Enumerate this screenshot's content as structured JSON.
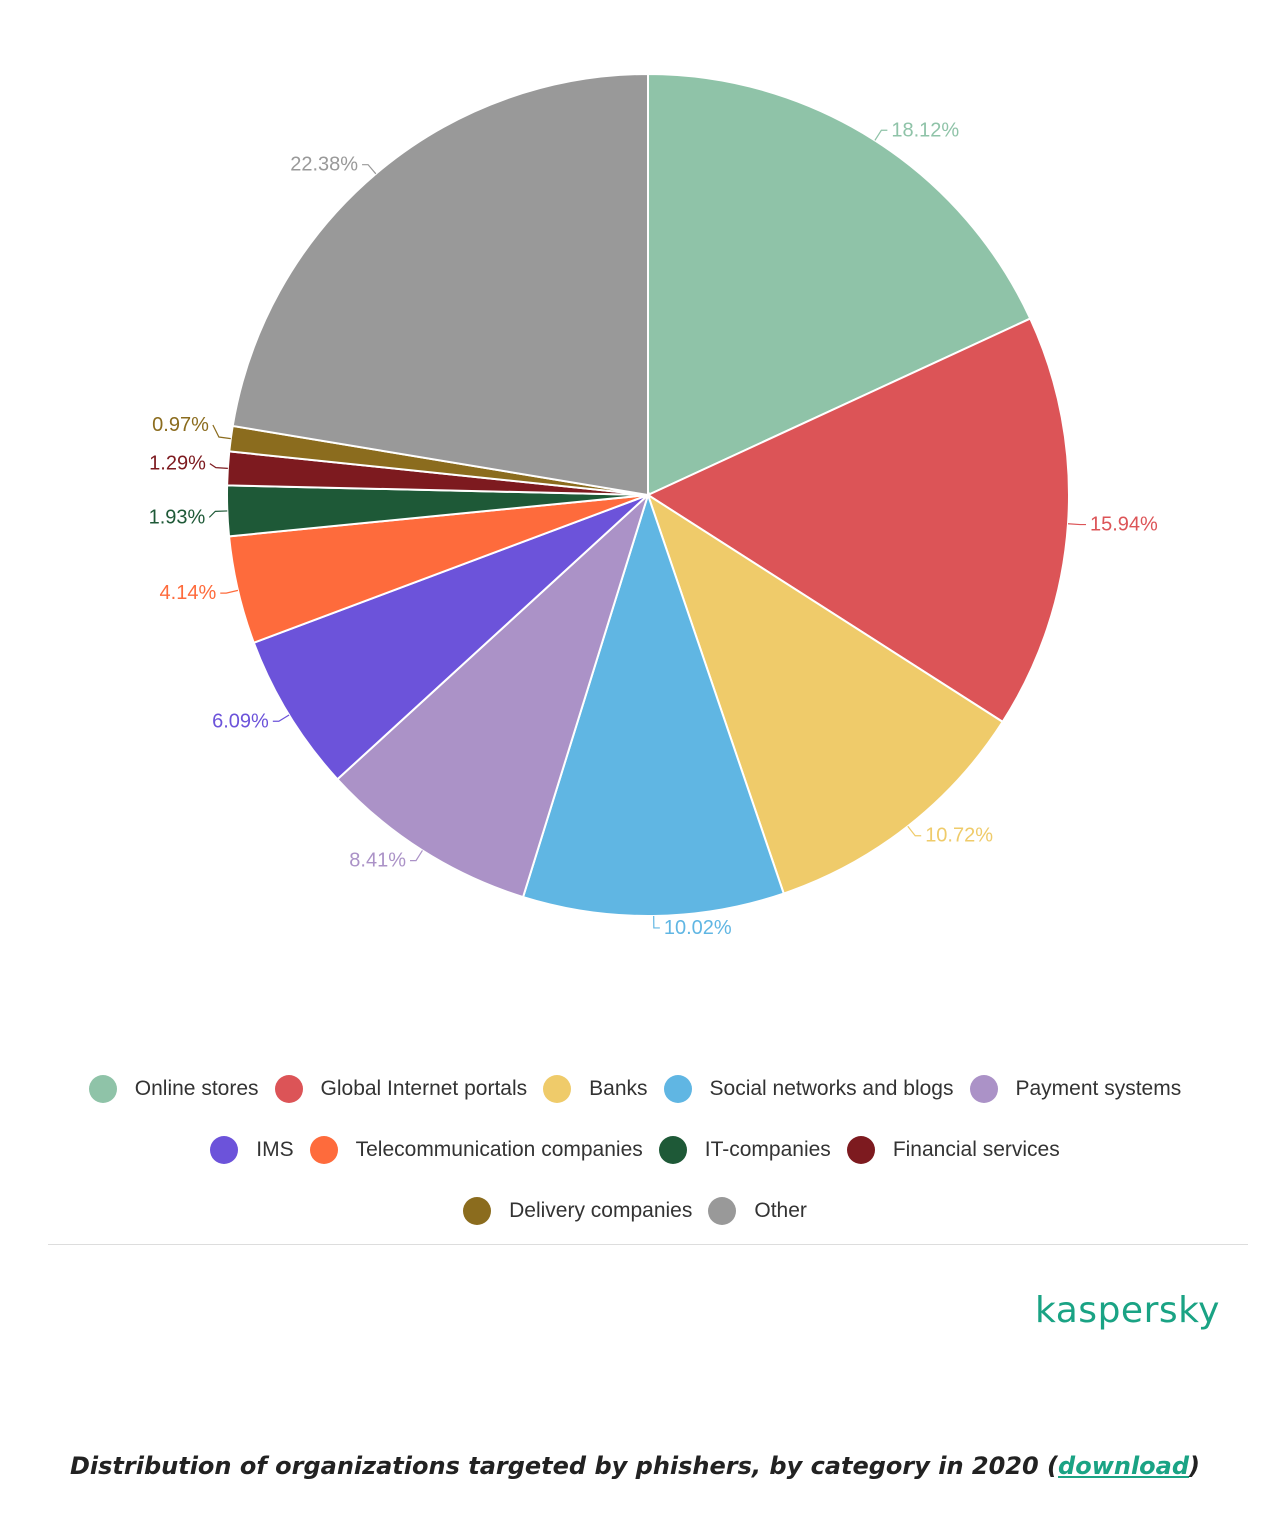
{
  "chart_data": {
    "type": "pie",
    "slices": [
      {
        "label": "Online stores",
        "value": 18.12,
        "display": "18.12%",
        "color": "#8fc3a8"
      },
      {
        "label": "Global Internet portals",
        "value": 15.94,
        "display": "15.94%",
        "color": "#dc5457"
      },
      {
        "label": "Banks",
        "value": 10.72,
        "display": "10.72%",
        "color": "#efcb6a"
      },
      {
        "label": "Social networks and blogs",
        "value": 10.02,
        "display": "10.02%",
        "color": "#60b6e3"
      },
      {
        "label": "Payment systems",
        "value": 8.41,
        "display": "8.41%",
        "color": "#ab92c7"
      },
      {
        "label": "IMS",
        "value": 6.09,
        "display": "6.09%",
        "color": "#6c53da"
      },
      {
        "label": "Telecommunication companies",
        "value": 4.14,
        "display": "4.14%",
        "color": "#fe6b3c"
      },
      {
        "label": "IT-companies",
        "value": 1.93,
        "display": "1.93%",
        "color": "#1e5937"
      },
      {
        "label": "Financial services",
        "value": 1.29,
        "display": "1.29%",
        "color": "#7d1a1f"
      },
      {
        "label": "Delivery companies",
        "value": 0.97,
        "display": "0.97%",
        "color": "#8b6c1e"
      },
      {
        "label": "Other",
        "value": 22.38,
        "display": "22.38%",
        "color": "#999999"
      }
    ],
    "legend_position": "bottom",
    "legend_rows": [
      [
        0,
        1,
        2,
        3,
        4
      ],
      [
        5,
        6,
        7,
        8
      ],
      [
        9,
        10
      ]
    ]
  },
  "brand": {
    "name": "kaspersky",
    "color": "#1aa384"
  },
  "caption": {
    "text": "Distribution of organizations targeted by phishers, by category in 2020 (",
    "link": "download",
    "end": ")",
    "link_color": "#1aa384"
  }
}
